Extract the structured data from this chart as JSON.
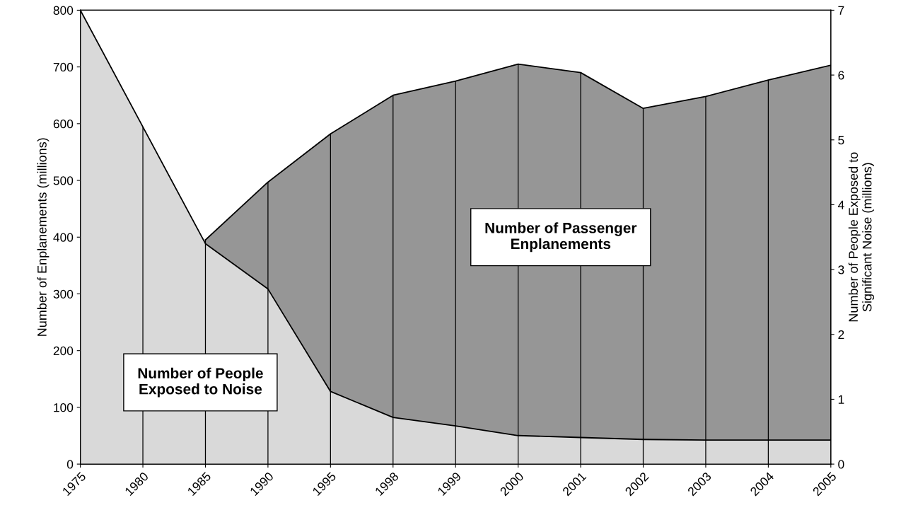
{
  "chart_data": {
    "type": "area",
    "categories": [
      "1975",
      "1980",
      "1985",
      "1990",
      "1995",
      "1998",
      "1999",
      "2000",
      "2001",
      "2002",
      "2003",
      "2004",
      "2005"
    ],
    "series": [
      {
        "name": "Number of Passenger\nEnplanements",
        "color": "#969696",
        "values": [
          null,
          null,
          395,
          497,
          582,
          650,
          675,
          705,
          690,
          627,
          648,
          677,
          703
        ]
      },
      {
        "name": "Number of People\nExposed to Noise",
        "color": "#d9d9d9",
        "axis": "y2",
        "values": [
          7.0,
          5.2,
          3.4,
          2.7,
          1.12,
          0.72,
          0.59,
          0.44,
          0.41,
          0.38,
          0.37,
          0.37,
          0.37
        ]
      }
    ],
    "ylabel": "Number of Enplanements (millions)",
    "y2label": "Number of People Exposed to\nSignificant Noise (millions)",
    "ylim": [
      0,
      800
    ],
    "yticks": [
      0,
      100,
      200,
      300,
      400,
      500,
      600,
      700,
      800
    ],
    "y2lim": [
      0,
      7
    ],
    "y2ticks": [
      0,
      1,
      2,
      3,
      4,
      5,
      6,
      7
    ],
    "grid": "x"
  }
}
